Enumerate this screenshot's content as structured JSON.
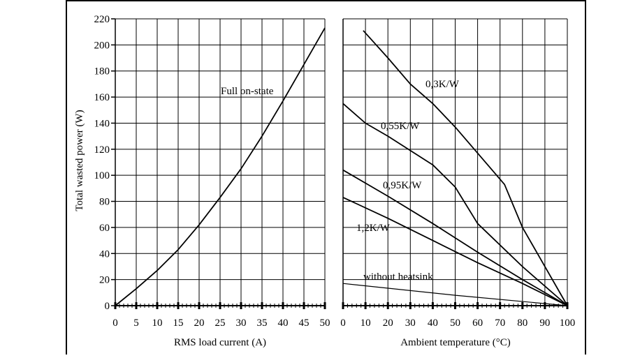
{
  "chart_data": [
    {
      "type": "line",
      "title": "",
      "xlabel": "RMS load current (A)",
      "ylabel": "Total wasted power (W)",
      "xlim": [
        0,
        50
      ],
      "ylim": [
        0,
        220
      ],
      "x_ticks": [
        0,
        5,
        10,
        15,
        20,
        25,
        30,
        35,
        40,
        45,
        50
      ],
      "y_ticks": [
        0,
        20,
        40,
        60,
        80,
        100,
        120,
        140,
        160,
        180,
        200,
        220
      ],
      "grid": true,
      "series": [
        {
          "name": "Full on-state",
          "points": [
            [
              0,
              0
            ],
            [
              5,
              13
            ],
            [
              10,
              27
            ],
            [
              15,
              43
            ],
            [
              20,
              62
            ],
            [
              25,
              83
            ],
            [
              30,
              105
            ],
            [
              35,
              130
            ],
            [
              40,
              157
            ],
            [
              45,
              185
            ],
            [
              50,
              213
            ]
          ]
        }
      ]
    },
    {
      "type": "line",
      "title": "",
      "xlabel": "Ambient temperature (°C)",
      "ylabel": "",
      "xlim": [
        0,
        100
      ],
      "ylim": [
        0,
        220
      ],
      "x_ticks": [
        0,
        10,
        20,
        30,
        40,
        50,
        60,
        70,
        80,
        90,
        100
      ],
      "y_ticks": [
        0,
        20,
        40,
        60,
        80,
        100,
        120,
        140,
        160,
        180,
        200,
        220
      ],
      "grid": true,
      "series": [
        {
          "name": "0,3K/W",
          "points": [
            [
              9,
              211
            ],
            [
              20,
              190
            ],
            [
              30,
              170
            ],
            [
              40,
              155
            ],
            [
              50,
              137
            ],
            [
              65,
              107
            ],
            [
              72,
              93
            ],
            [
              80,
              60
            ],
            [
              100,
              0
            ]
          ]
        },
        {
          "name": "0,55K/W",
          "points": [
            [
              0,
              155
            ],
            [
              10,
              140
            ],
            [
              20,
              130
            ],
            [
              40,
              108
            ],
            [
              50,
              91
            ],
            [
              60,
              63
            ],
            [
              80,
              30
            ],
            [
              100,
              0
            ]
          ]
        },
        {
          "name": "0,95K/W",
          "points": [
            [
              0,
              104
            ],
            [
              20,
              84
            ],
            [
              40,
              63
            ],
            [
              60,
              41
            ],
            [
              80,
              20
            ],
            [
              100,
              0
            ]
          ]
        },
        {
          "name": "1,2K/W",
          "points": [
            [
              0,
              83
            ],
            [
              20,
              67
            ],
            [
              40,
              50
            ],
            [
              60,
              33
            ],
            [
              80,
              17
            ],
            [
              100,
              0
            ]
          ]
        },
        {
          "name": "without heatsink",
          "points": [
            [
              0,
              17
            ],
            [
              50,
              8
            ],
            [
              100,
              0
            ]
          ]
        }
      ]
    }
  ]
}
